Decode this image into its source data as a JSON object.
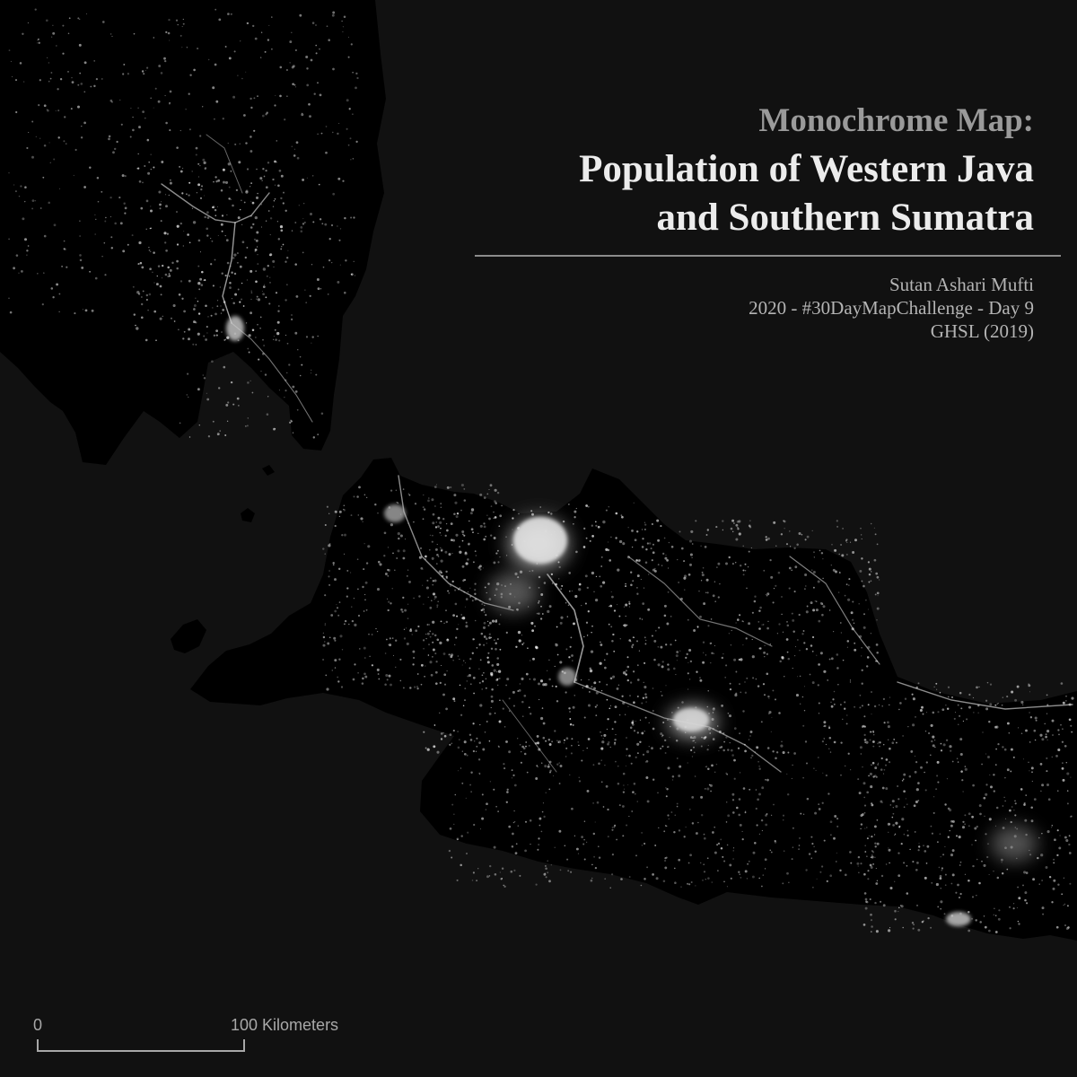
{
  "map": {
    "subtitle": "Monochrome Map:",
    "title_line1": "Population of Western Java",
    "title_line2": "and Southern Sumatra",
    "author": "Sutan Ashari Mufti",
    "challenge": "2020 - #30DayMapChallenge - Day 9",
    "source": "GHSL (2019)",
    "scale_start": "0",
    "scale_end": "100 Kilometers",
    "colors": {
      "sea": "#111111",
      "land": "#000000",
      "settlement": "#ffffff",
      "dense_urban": "#e6e6e6"
    }
  }
}
